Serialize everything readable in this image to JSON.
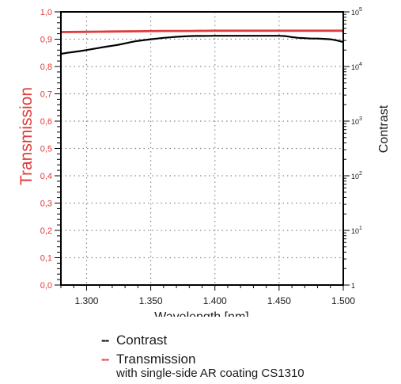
{
  "chart_data": {
    "type": "line",
    "xlabel": "Wavelength [nm]",
    "ylabel_left": "Transmission",
    "ylabel_right": "Contrast",
    "xlim": [
      1.28,
      1.5
    ],
    "ylim_left": [
      0.0,
      1.0
    ],
    "ylim_right": [
      1,
      100000
    ],
    "right_scale": "log",
    "grid": "dotted",
    "x_ticks": [
      {
        "value": 1.3,
        "label": "1.300"
      },
      {
        "value": 1.35,
        "label": "1.350"
      },
      {
        "value": 1.4,
        "label": "1.400"
      },
      {
        "value": 1.45,
        "label": "1.450"
      },
      {
        "value": 1.5,
        "label": "1.500"
      }
    ],
    "y_left_ticks": [
      {
        "value": 0.0,
        "label": "0,0"
      },
      {
        "value": 0.1,
        "label": "0,1"
      },
      {
        "value": 0.2,
        "label": "0,2"
      },
      {
        "value": 0.3,
        "label": "0,3"
      },
      {
        "value": 0.4,
        "label": "0,4"
      },
      {
        "value": 0.5,
        "label": "0,5"
      },
      {
        "value": 0.6,
        "label": "0,6"
      },
      {
        "value": 0.7,
        "label": "0,7"
      },
      {
        "value": 0.8,
        "label": "0,8"
      },
      {
        "value": 0.9,
        "label": "0,9"
      },
      {
        "value": 1.0,
        "label": "1,0"
      }
    ],
    "y_right_ticks": [
      {
        "value": 1,
        "base": "1",
        "exp": ""
      },
      {
        "value": 10,
        "base": "10",
        "exp": "1"
      },
      {
        "value": 100,
        "base": "10",
        "exp": "2"
      },
      {
        "value": 1000,
        "base": "10",
        "exp": "3"
      },
      {
        "value": 10000,
        "base": "10",
        "exp": "4"
      },
      {
        "value": 100000,
        "base": "10",
        "exp": "5"
      }
    ],
    "series": [
      {
        "name": "Contrast",
        "axis": "right",
        "color": "#000000",
        "x": [
          1.28,
          1.285,
          1.29,
          1.295,
          1.3,
          1.305,
          1.31,
          1.315,
          1.32,
          1.325,
          1.33,
          1.335,
          1.34,
          1.345,
          1.35,
          1.355,
          1.36,
          1.365,
          1.37,
          1.375,
          1.38,
          1.385,
          1.39,
          1.395,
          1.4,
          1.405,
          1.41,
          1.415,
          1.42,
          1.425,
          1.43,
          1.435,
          1.44,
          1.445,
          1.45,
          1.455,
          1.46,
          1.465,
          1.47,
          1.475,
          1.48,
          1.485,
          1.49,
          1.495,
          1.5
        ],
        "y": [
          17000,
          17800,
          18500,
          19200,
          20000,
          21000,
          22000,
          23000,
          24000,
          25000,
          26500,
          28000,
          29500,
          30500,
          31500,
          32500,
          33500,
          34200,
          35000,
          35500,
          36000,
          36200,
          36300,
          36400,
          36500,
          36500,
          36500,
          36500,
          36500,
          36500,
          36500,
          36500,
          36500,
          36500,
          36500,
          36000,
          34500,
          33500,
          33000,
          32500,
          32500,
          32000,
          31500,
          30000,
          28000
        ]
      },
      {
        "name": "Transmission",
        "axis": "left",
        "color": "#e03a3a",
        "note": "with single-side AR coating CS1310",
        "x": [
          1.28,
          1.3,
          1.32,
          1.34,
          1.36,
          1.38,
          1.4,
          1.42,
          1.44,
          1.46,
          1.48,
          1.5
        ],
        "y": [
          0.926,
          0.927,
          0.928,
          0.929,
          0.93,
          0.93,
          0.931,
          0.931,
          0.931,
          0.931,
          0.931,
          0.931
        ]
      }
    ]
  }
}
